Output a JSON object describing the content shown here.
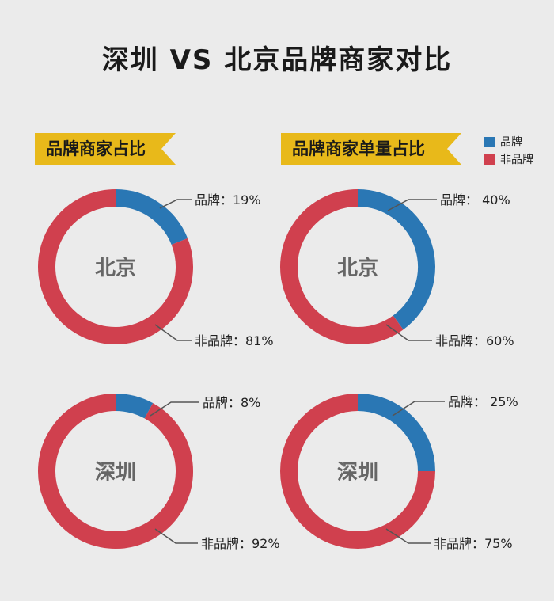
{
  "title": "深圳 VS 北京品牌商家对比",
  "banners": [
    "品牌商家占比",
    "品牌商家单量占比"
  ],
  "legend": [
    {
      "label": "品牌",
      "color": "#2a77b4"
    },
    {
      "label": "非品牌",
      "color": "#d0404e"
    }
  ],
  "chart_data": [
    {
      "type": "pie",
      "center_label": "北京",
      "group": "品牌商家占比",
      "slices": [
        {
          "label": "品牌",
          "value": 19,
          "text": "品牌：19%"
        },
        {
          "label": "非品牌",
          "value": 81,
          "text": "非品牌：81%"
        }
      ]
    },
    {
      "type": "pie",
      "center_label": "北京",
      "group": "品牌商家单量占比",
      "slices": [
        {
          "label": "品牌",
          "value": 40,
          "text": "品牌： 40%"
        },
        {
          "label": "非品牌",
          "value": 60,
          "text": "非品牌：60%"
        }
      ]
    },
    {
      "type": "pie",
      "center_label": "深圳",
      "group": "品牌商家占比",
      "slices": [
        {
          "label": "品牌",
          "value": 8,
          "text": "品牌：8%"
        },
        {
          "label": "非品牌",
          "value": 92,
          "text": "非品牌：92%"
        }
      ]
    },
    {
      "type": "pie",
      "center_label": "深圳",
      "group": "品牌商家单量占比",
      "slices": [
        {
          "label": "品牌",
          "value": 25,
          "text": "品牌： 25%"
        },
        {
          "label": "非品牌",
          "value": 75,
          "text": "非品牌：75%"
        }
      ]
    }
  ]
}
